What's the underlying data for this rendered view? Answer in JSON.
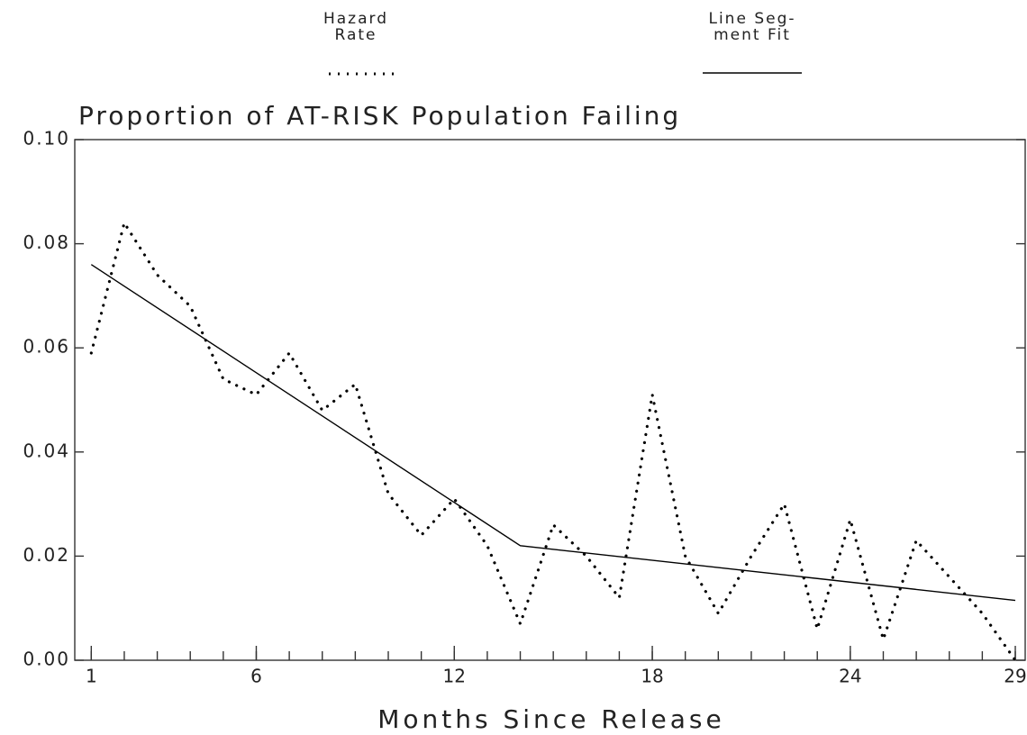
{
  "chart_data": {
    "type": "line",
    "title": "Proportion of AT-RISK Population Failing",
    "x_label": "Months Since Release",
    "x": [
      1,
      2,
      3,
      4,
      5,
      6,
      7,
      8,
      9,
      10,
      11,
      12,
      13,
      14,
      15,
      16,
      17,
      18,
      19,
      20,
      21,
      22,
      23,
      24,
      25,
      26,
      27,
      28,
      29
    ],
    "series": [
      {
        "name": "Hazard\nRate",
        "color": "#000000",
        "style": "dotted",
        "values": [
          0.059,
          0.084,
          0.074,
          0.068,
          0.054,
          0.051,
          0.059,
          0.048,
          0.053,
          0.032,
          0.024,
          0.031,
          0.022,
          0.007,
          0.026,
          0.02,
          0.012,
          0.051,
          0.02,
          0.009,
          0.02,
          0.03,
          0.006,
          0.027,
          0.004,
          0.023,
          0.016,
          0.009,
          0.0
        ]
      },
      {
        "name": "Line Seg-\nment Fit",
        "color": "#000000",
        "style": "solid",
        "x": [
          1,
          14,
          29
        ],
        "values": [
          0.076,
          0.022,
          0.0115
        ]
      }
    ],
    "xlim": [
      0.5,
      29.3
    ],
    "xticks": [
      1,
      6,
      12,
      18,
      24,
      29
    ],
    "ylim": [
      0,
      0.1
    ],
    "yticks": [
      {
        "value": 0,
        "label": "0.00"
      },
      {
        "value": 0.02,
        "label": "0.02"
      },
      {
        "value": 0.04,
        "label": "0.04"
      },
      {
        "value": 0.06,
        "label": "0.06"
      },
      {
        "value": 0.08,
        "label": "0.08"
      },
      {
        "value": 0.1,
        "label": "0.10"
      }
    ]
  }
}
